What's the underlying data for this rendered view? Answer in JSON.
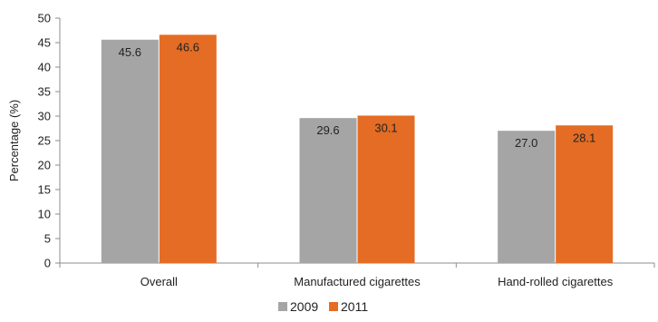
{
  "chart_data": {
    "type": "bar",
    "categories": [
      "Overall",
      "Manufactured cigarettes",
      "Hand-rolled cigarettes"
    ],
    "series": [
      {
        "name": "2009",
        "values": [
          45.6,
          29.6,
          27.0
        ],
        "color": "#a5a5a5"
      },
      {
        "name": "2011",
        "values": [
          46.6,
          30.1,
          28.1
        ],
        "color": "#e46c24"
      }
    ],
    "data_labels": [
      [
        "45.6",
        "29.6",
        "27.0"
      ],
      [
        "46.6",
        "30.1",
        "28.1"
      ]
    ],
    "ylabel": "Percentage (%)",
    "ylim": [
      0,
      50
    ],
    "yticks": [
      0,
      5,
      10,
      15,
      20,
      25,
      30,
      35,
      40,
      45,
      50
    ],
    "grid": false,
    "legend_position": "bottom-center"
  }
}
